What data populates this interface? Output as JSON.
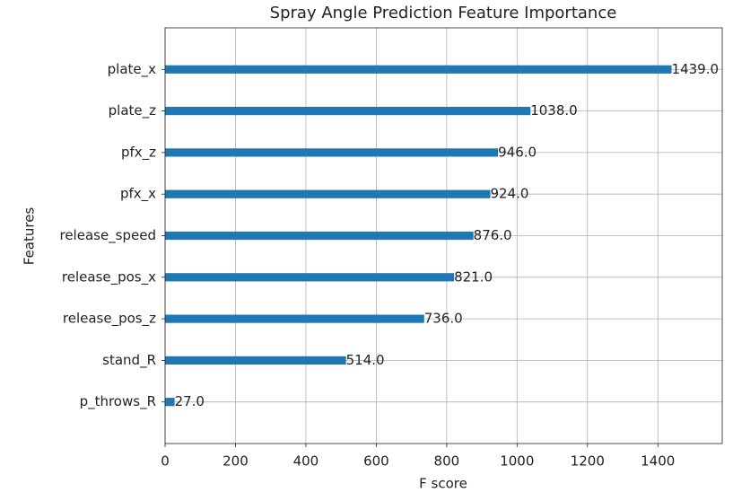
{
  "chart_data": {
    "type": "barh",
    "title": "Spray Angle Prediction Feature Importance",
    "x_label": "F score",
    "y_label": "Features",
    "categories": [
      "plate_x",
      "plate_z",
      "pfx_z",
      "pfx_x",
      "release_speed",
      "release_pos_x",
      "release_pos_z",
      "stand_R",
      "p_throws_R"
    ],
    "values": [
      1439,
      1038,
      946,
      924,
      876,
      821,
      736,
      514,
      27
    ],
    "value_labels": [
      "1439.0",
      "1038.0",
      "946.0",
      "924.0",
      "876.0",
      "821.0",
      "736.0",
      "514.0",
      "27.0"
    ],
    "color": "#1f77b4",
    "xlim": [
      0,
      1582.9
    ],
    "xticks": [
      0,
      200,
      400,
      600,
      800,
      1000,
      1200,
      1400
    ],
    "grid": true
  }
}
